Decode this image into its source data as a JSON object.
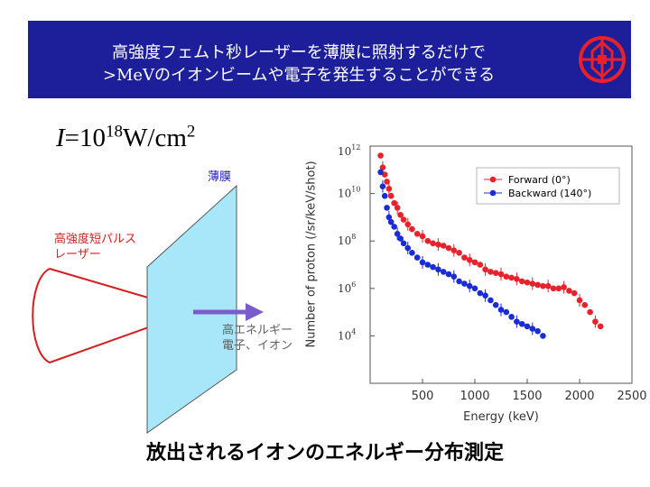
{
  "header": {
    "title_line1": "高強度フェムト秒レーザーを薄膜に照射するだけで",
    "title_line2": ">MeVのイオンビームや電子を発生することができる",
    "background_color": "#1c1f99"
  },
  "intensity": {
    "symbol": "I",
    "equals": "=10",
    "exponent": "18",
    "unit": "W/cm",
    "unit_exponent": "2"
  },
  "diagram": {
    "film_label": "薄膜",
    "laser_label_line1": "高強度短パルス",
    "laser_label_line2": "レーザー",
    "output_label_line1": "高エネルギー",
    "output_label_line2": "電子、イオン",
    "film_color": "#a8e6fa",
    "laser_color": "#d42020",
    "arrow_color": "#7a5ccc"
  },
  "caption": "放出されるイオンのエネルギー分布測定",
  "chart_data": {
    "type": "scatter",
    "xlabel": "Energy (keV)",
    "ylabel": "Number of proton (/sr/keV/shot)",
    "xlim": [
      0,
      2500
    ],
    "ylim_log10": [
      2,
      12
    ],
    "x_ticks": [
      "500",
      "1000",
      "1500",
      "2000",
      "2500"
    ],
    "y_ticks": [
      {
        "base": "10",
        "exp": "12"
      },
      {
        "base": "10",
        "exp": "10"
      },
      {
        "base": "10",
        "exp": "8"
      },
      {
        "base": "10",
        "exp": "6"
      },
      {
        "base": "10",
        "exp": "4"
      }
    ],
    "legend_position": "top-right",
    "series": [
      {
        "name": "Forward (0°)",
        "legend_name": "Forward",
        "legend_angle": "(0°)",
        "color": "#e8212b",
        "x": [
          100,
          120,
          140,
          160,
          180,
          200,
          230,
          260,
          290,
          320,
          360,
          400,
          450,
          500,
          550,
          600,
          650,
          700,
          750,
          800,
          850,
          900,
          950,
          1000,
          1050,
          1100,
          1150,
          1200,
          1250,
          1300,
          1350,
          1400,
          1450,
          1500,
          1550,
          1600,
          1650,
          1700,
          1750,
          1800,
          1850,
          1900,
          1950,
          2000,
          2050,
          2100,
          2150,
          2200
        ],
        "log10_y": [
          11.6,
          11.1,
          10.8,
          10.5,
          10.2,
          9.9,
          9.6,
          9.4,
          9.1,
          8.9,
          8.7,
          8.5,
          8.3,
          8.2,
          8.0,
          7.9,
          7.85,
          7.8,
          7.7,
          7.6,
          7.5,
          7.3,
          7.2,
          7.1,
          7.0,
          6.8,
          6.7,
          6.65,
          6.6,
          6.5,
          6.45,
          6.4,
          6.3,
          6.25,
          6.2,
          6.15,
          6.1,
          6.1,
          6.0,
          6.0,
          6.05,
          5.9,
          5.8,
          5.5,
          5.3,
          5.0,
          4.6,
          4.4
        ]
      },
      {
        "name": "Backward (140°)",
        "legend_name": "Backward",
        "legend_angle": "(140°)",
        "color": "#1a2bd8",
        "x": [
          100,
          120,
          140,
          160,
          180,
          200,
          230,
          260,
          290,
          320,
          360,
          400,
          450,
          500,
          550,
          600,
          650,
          700,
          750,
          800,
          850,
          900,
          950,
          1000,
          1050,
          1100,
          1150,
          1200,
          1250,
          1300,
          1350,
          1400,
          1450,
          1500,
          1550,
          1600,
          1650
        ],
        "log10_y": [
          10.9,
          10.3,
          9.9,
          9.4,
          9.0,
          8.8,
          8.6,
          8.3,
          8.1,
          7.9,
          7.7,
          7.5,
          7.3,
          7.1,
          7.0,
          6.9,
          6.8,
          6.7,
          6.6,
          6.5,
          6.3,
          6.2,
          6.1,
          6.0,
          5.8,
          5.7,
          5.5,
          5.3,
          5.1,
          5.0,
          4.8,
          4.6,
          4.5,
          4.4,
          4.3,
          4.2,
          4.0
        ]
      }
    ]
  }
}
